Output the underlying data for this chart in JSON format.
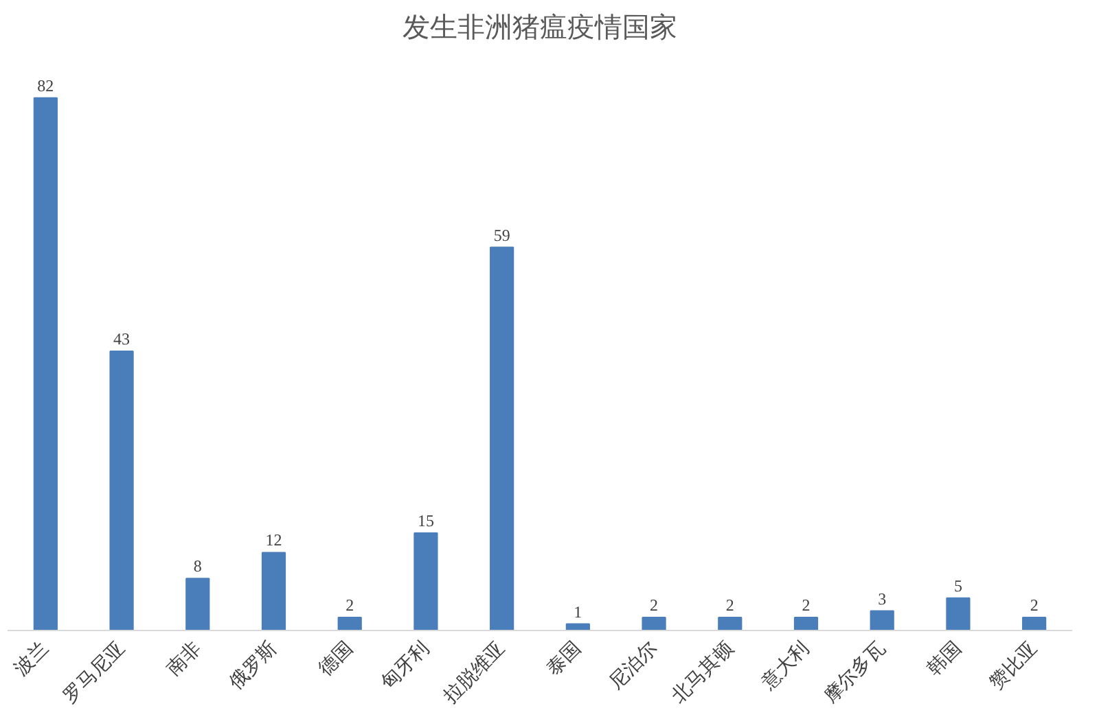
{
  "chart_data": {
    "type": "bar",
    "title": "发生非洲猪瘟疫情国家",
    "categories": [
      "波兰",
      "罗马尼亚",
      "南非",
      "俄罗斯",
      "德国",
      "匈牙利",
      "拉脱维亚",
      "泰国",
      "尼泊尔",
      "北马其顿",
      "意大利",
      "摩尔多瓦",
      "韩国",
      "赞比亚"
    ],
    "values": [
      82,
      43,
      8,
      12,
      2,
      15,
      59,
      1,
      2,
      2,
      2,
      3,
      5,
      2
    ],
    "color": "#4a7ebb",
    "data_labels": true,
    "grid": false
  }
}
